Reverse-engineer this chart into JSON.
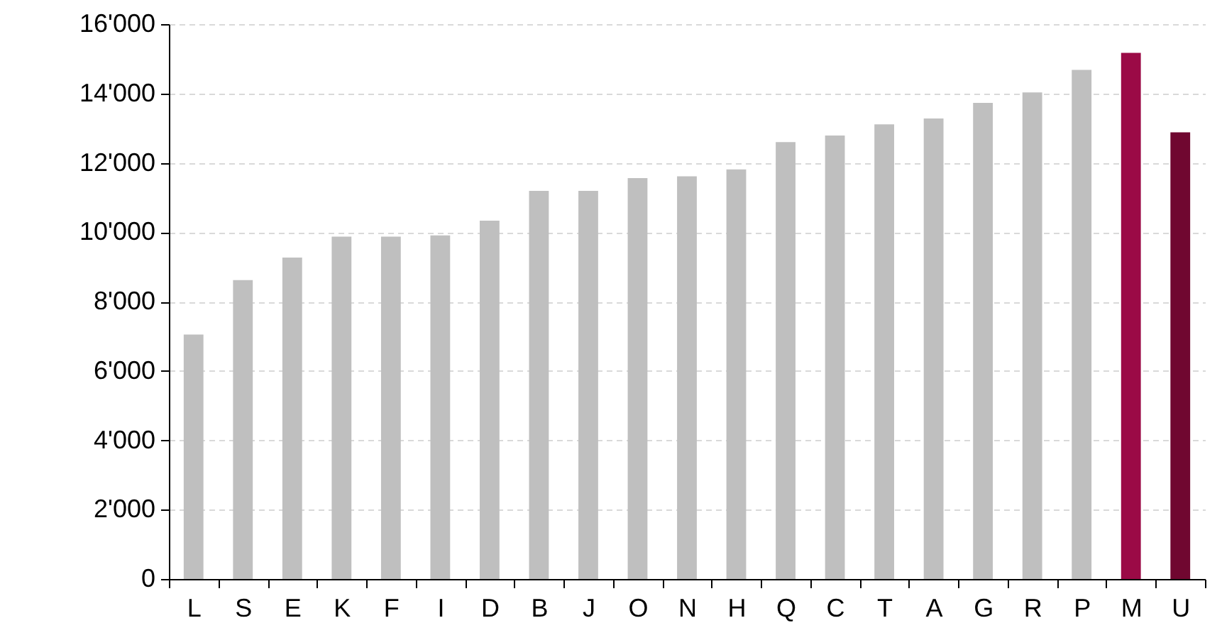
{
  "chart_data": {
    "type": "bar",
    "categories": [
      "L",
      "S",
      "E",
      "K",
      "F",
      "I",
      "D",
      "B",
      "J",
      "O",
      "N",
      "H",
      "Q",
      "C",
      "T",
      "A",
      "G",
      "R",
      "P",
      "M",
      "U"
    ],
    "values": [
      7050,
      8620,
      9270,
      9870,
      9870,
      9910,
      10330,
      11190,
      11190,
      11560,
      11610,
      11810,
      12600,
      12790,
      13110,
      13280,
      13730,
      14030,
      14680,
      15170,
      12880
    ],
    "colors": [
      "#bfbfbf",
      "#bfbfbf",
      "#bfbfbf",
      "#bfbfbf",
      "#bfbfbf",
      "#bfbfbf",
      "#bfbfbf",
      "#bfbfbf",
      "#bfbfbf",
      "#bfbfbf",
      "#bfbfbf",
      "#bfbfbf",
      "#bfbfbf",
      "#bfbfbf",
      "#bfbfbf",
      "#bfbfbf",
      "#bfbfbf",
      "#bfbfbf",
      "#bfbfbf",
      "#9b0a46",
      "#700730"
    ],
    "ylim": [
      0,
      16000
    ],
    "yticks": [
      0,
      {
        "value": 2000,
        "label": "2'000"
      },
      {
        "value": 4000,
        "label": "4'000"
      },
      {
        "value": 6000,
        "label": "6'000"
      },
      {
        "value": 8000,
        "label": "8'000"
      },
      {
        "value": 10000,
        "label": "10'000"
      },
      {
        "value": 12000,
        "label": "12'000"
      },
      {
        "value": 14000,
        "label": "14'000"
      },
      {
        "value": 16000,
        "label": "16'000"
      }
    ],
    "grid": "y"
  }
}
